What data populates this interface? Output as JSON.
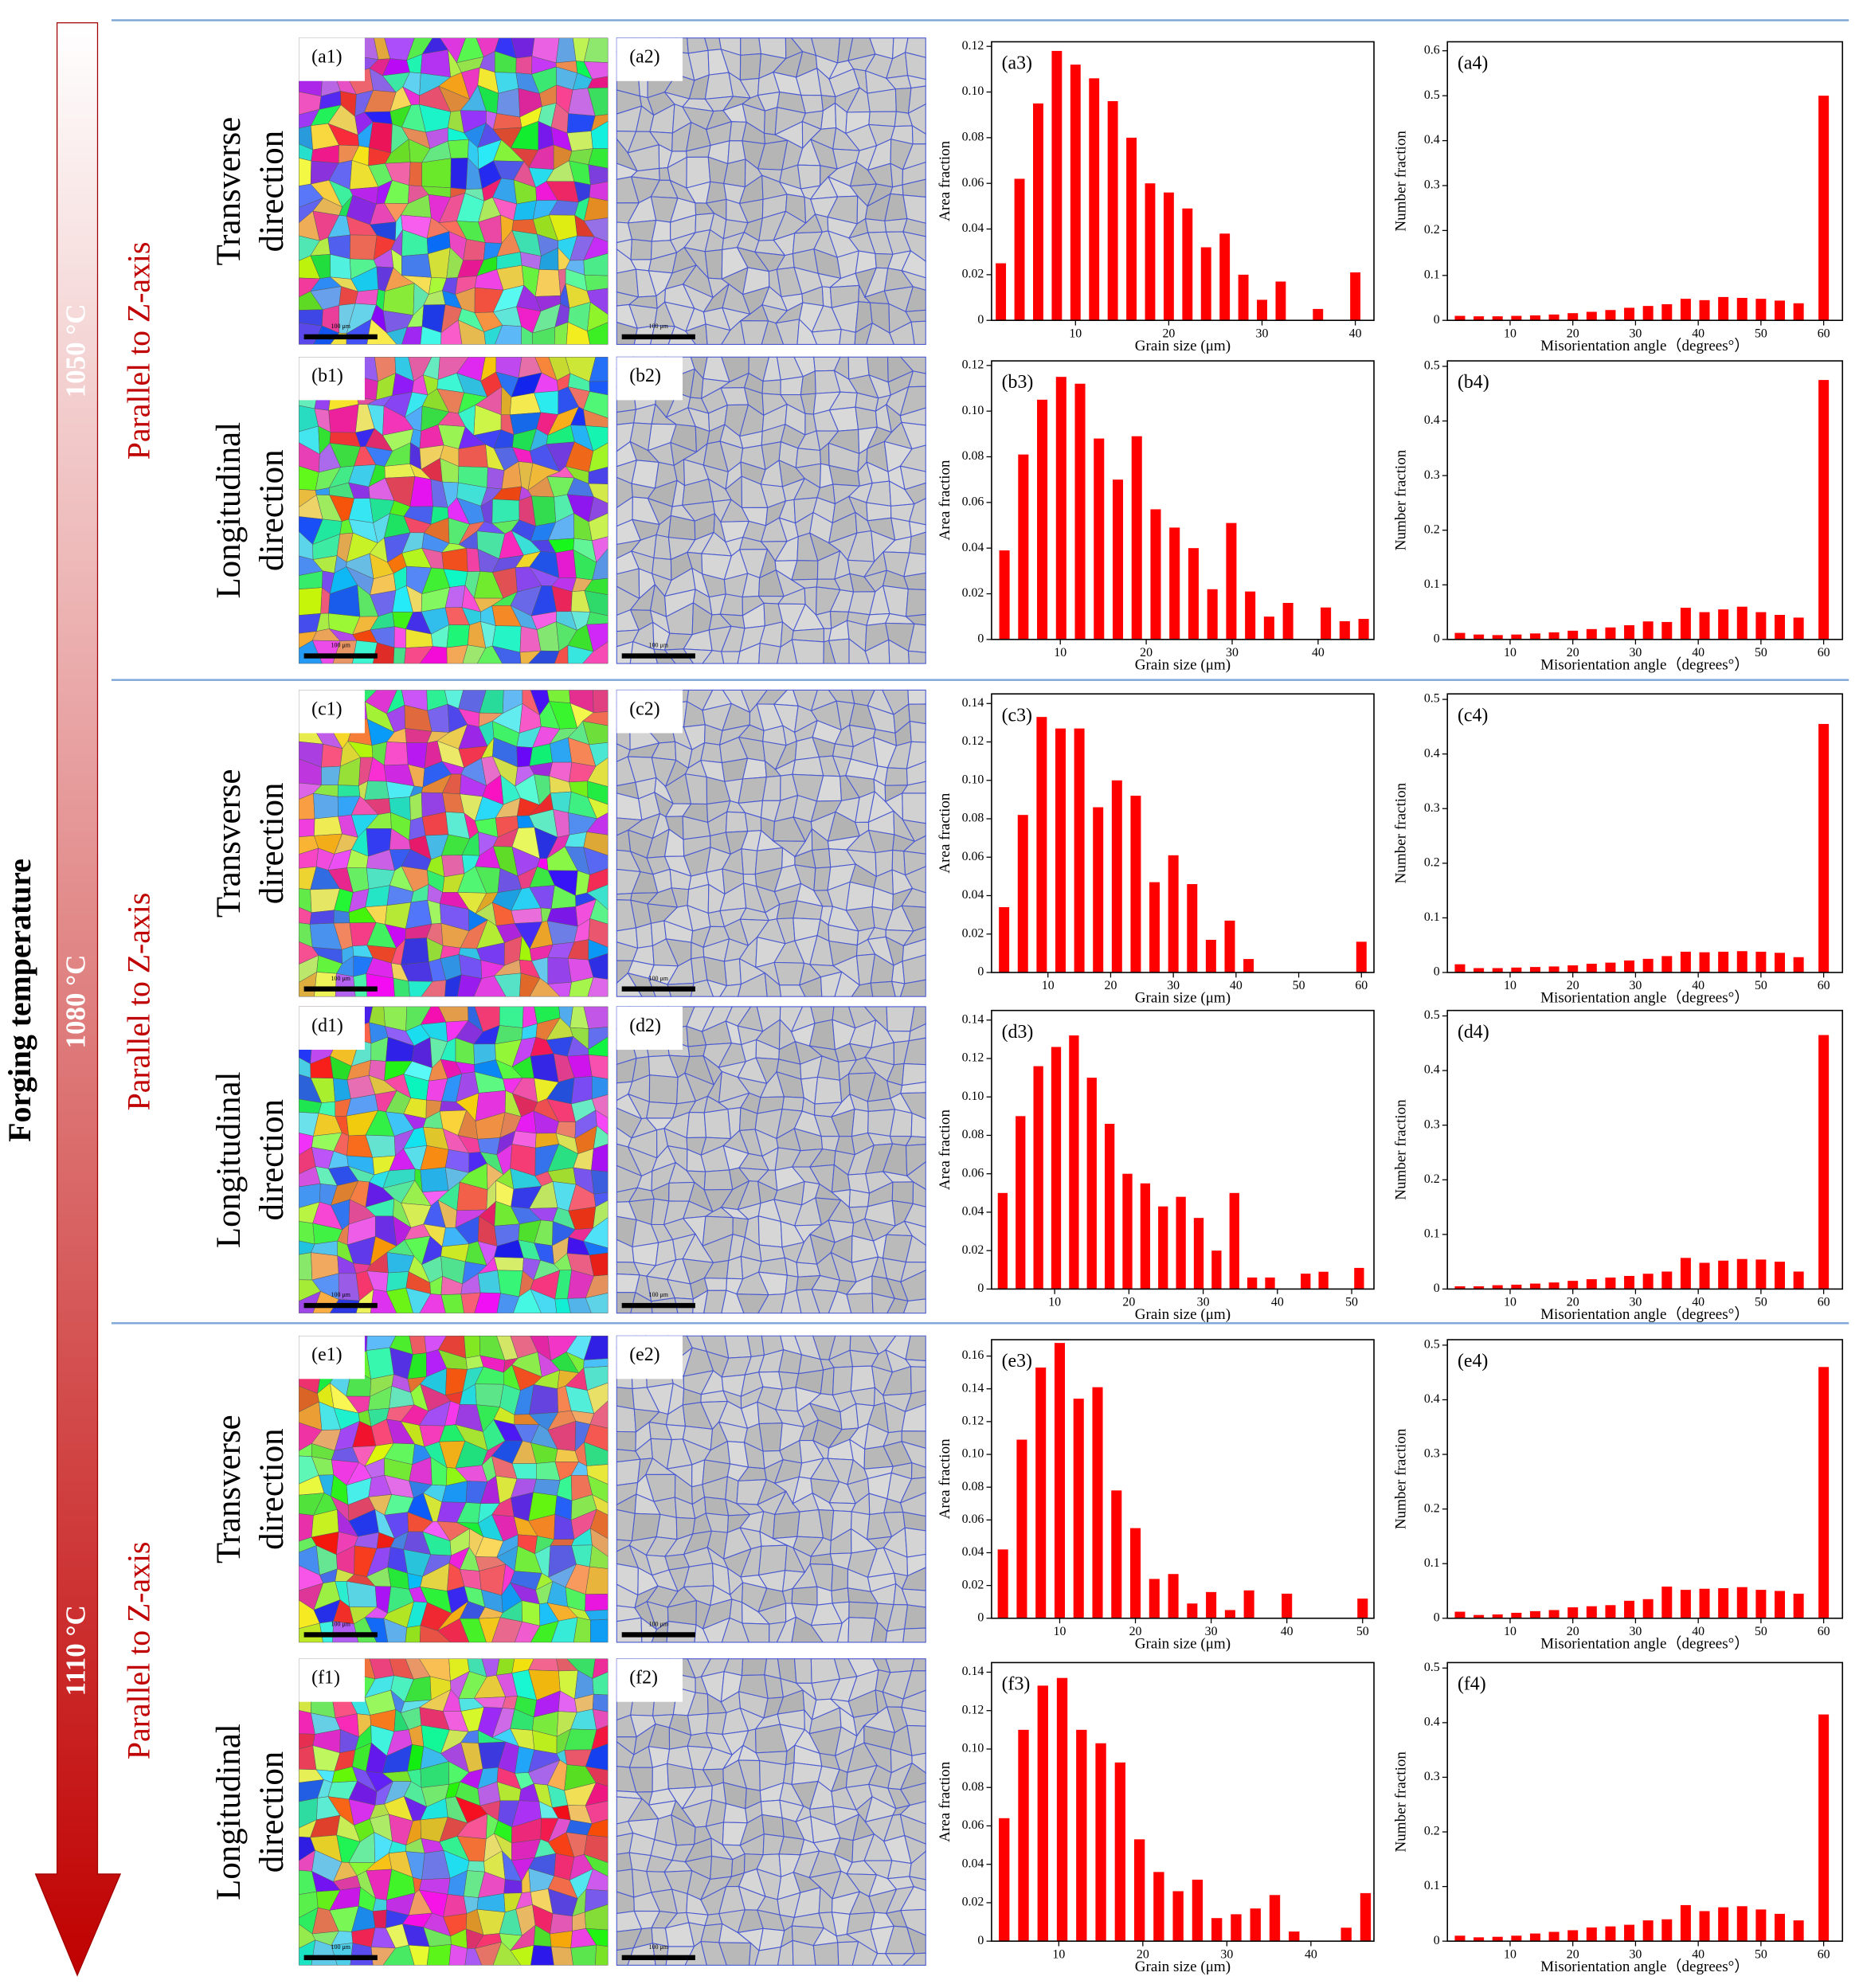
{
  "axis_label": "Forging temperature",
  "groups": [
    {
      "temperature": "1050 °C",
      "orientation": "Parallel to Z-axis",
      "rows": [
        {
          "direction": [
            "Transverse",
            "direction"
          ],
          "images": [
            {
              "label": "(a1)",
              "scale": "100 μm"
            },
            {
              "label": "(a2)",
              "scale": "100 μm"
            }
          ]
        },
        {
          "direction": [
            "Longitudinal",
            "direction"
          ],
          "images": [
            {
              "label": "(b1)",
              "scale": "100 μm"
            },
            {
              "label": "(b2)",
              "scale": "100 μm"
            }
          ]
        }
      ]
    },
    {
      "temperature": "1080 °C",
      "orientation": "Parallel to Z-axis",
      "rows": [
        {
          "direction": [
            "Transverse",
            "direction"
          ],
          "images": [
            {
              "label": "(c1)",
              "scale": "100 μm"
            },
            {
              "label": "(c2)",
              "scale": "100 μm"
            }
          ]
        },
        {
          "direction": [
            "Longitudinal",
            "direction"
          ],
          "images": [
            {
              "label": "(d1)",
              "scale": "100 μm"
            },
            {
              "label": "(d2)",
              "scale": "100 μm"
            }
          ]
        }
      ]
    },
    {
      "temperature": "1110 °C",
      "orientation": "Parallel to Z-axis",
      "rows": [
        {
          "direction": [
            "Transverse",
            "direction"
          ],
          "images": [
            {
              "label": "(e1)",
              "scale": "100 μm"
            },
            {
              "label": "(e2)",
              "scale": "100 μm"
            }
          ]
        },
        {
          "direction": [
            "Longitudinal",
            "direction"
          ],
          "images": [
            {
              "label": "(f1)",
              "scale": "100 μm"
            },
            {
              "label": "(f2)",
              "scale": "100 μm"
            }
          ]
        }
      ]
    }
  ],
  "chart_data": [
    {
      "type": "bar",
      "panel": "(a3)",
      "xlabel": "Grain size (μm)",
      "ylabel": "Area fraction",
      "color": "#ff0000",
      "x": [
        2,
        4,
        6,
        8,
        10,
        12,
        14,
        16,
        18,
        20,
        22,
        24,
        26,
        28,
        30,
        32,
        36,
        40
      ],
      "values": [
        0.025,
        0.062,
        0.095,
        0.118,
        0.112,
        0.106,
        0.096,
        0.08,
        0.06,
        0.056,
        0.049,
        0.032,
        0.038,
        0.02,
        0.009,
        0.017,
        0.005,
        0.021
      ],
      "xlim": [
        1,
        42
      ],
      "xticks": [
        10,
        20,
        30,
        40
      ],
      "ylim": [
        0,
        0.122
      ],
      "yticks": [
        0,
        0.02,
        0.04,
        0.06,
        0.08,
        {
          "value": 0.1,
          "label": "0.10"
        },
        0.12
      ]
    },
    {
      "type": "bar",
      "panel": "(a4)",
      "xlabel": "Misorientation angle（degrees°）",
      "ylabel": "Number fraction",
      "color": "#ff0000",
      "x": [
        2,
        5,
        8,
        11,
        14,
        17,
        20,
        23,
        26,
        29,
        32,
        35,
        38,
        41,
        44,
        47,
        50,
        53,
        56,
        60
      ],
      "values": [
        0.01,
        0.009,
        0.009,
        0.01,
        0.011,
        0.013,
        0.016,
        0.019,
        0.023,
        0.028,
        0.032,
        0.036,
        0.048,
        0.045,
        0.052,
        0.05,
        0.048,
        0.044,
        0.038,
        0.5
      ],
      "xlim": [
        0,
        63
      ],
      "xticks": [
        10,
        20,
        30,
        40,
        50,
        60
      ],
      "ylim": [
        0,
        0.62
      ],
      "yticks": [
        0,
        0.1,
        0.2,
        0.3,
        0.4,
        0.5,
        0.6
      ]
    },
    {
      "type": "bar",
      "panel": "(b3)",
      "xlabel": "Grain size (μm)",
      "ylabel": "Area fraction",
      "color": "#ff0000",
      "x": [
        3.5,
        5.7,
        7.9,
        10.1,
        12.3,
        14.5,
        16.7,
        18.9,
        21.1,
        23.3,
        25.5,
        27.7,
        29.9,
        32.1,
        34.3,
        36.5,
        40.9,
        43.1,
        45.3
      ],
      "values": [
        0.039,
        0.081,
        0.105,
        0.115,
        0.112,
        0.088,
        0.07,
        0.089,
        0.057,
        0.049,
        0.04,
        0.022,
        0.051,
        0.021,
        0.01,
        0.016,
        0.014,
        0.008,
        0.009
      ],
      "xlim": [
        2,
        46.5
      ],
      "xticks": [
        10,
        20,
        30,
        40
      ],
      "ylim": [
        0,
        0.122
      ],
      "yticks": [
        0,
        0.02,
        0.04,
        0.06,
        0.08,
        {
          "value": 0.1,
          "label": "0.10"
        },
        0.12
      ]
    },
    {
      "type": "bar",
      "panel": "(b4)",
      "xlabel": "Misorientation angle（degrees°）",
      "ylabel": "Number fraction",
      "color": "#ff0000",
      "x": [
        2,
        5,
        8,
        11,
        14,
        17,
        20,
        23,
        26,
        29,
        32,
        35,
        38,
        41,
        44,
        47,
        50,
        53,
        56,
        60
      ],
      "values": [
        0.012,
        0.009,
        0.008,
        0.009,
        0.011,
        0.013,
        0.016,
        0.019,
        0.022,
        0.026,
        0.033,
        0.032,
        0.058,
        0.05,
        0.055,
        0.06,
        0.05,
        0.045,
        0.04,
        0.475
      ],
      "xlim": [
        0,
        63
      ],
      "xticks": [
        10,
        20,
        30,
        40,
        50,
        60
      ],
      "ylim": [
        0,
        0.51
      ],
      "yticks": [
        0,
        0.1,
        0.2,
        0.3,
        0.4,
        0.5
      ]
    },
    {
      "type": "bar",
      "panel": "(c3)",
      "xlabel": "Grain size (μm)",
      "ylabel": "Area fraction",
      "color": "#ff0000",
      "x": [
        3,
        6,
        9,
        12,
        15,
        18,
        21,
        24,
        27,
        30,
        33,
        36,
        39,
        42,
        60
      ],
      "values": [
        0.034,
        0.082,
        0.133,
        0.127,
        0.127,
        0.086,
        0.1,
        0.092,
        0.047,
        0.061,
        0.046,
        0.017,
        0.027,
        0.007,
        0.016
      ],
      "xlim": [
        1,
        62
      ],
      "xticks": [
        10,
        20,
        30,
        40,
        50,
        60
      ],
      "ylim": [
        0,
        0.145
      ],
      "yticks": [
        0,
        0.02,
        0.04,
        0.06,
        0.08,
        {
          "value": 0.1,
          "label": "0.10"
        },
        0.12,
        0.14
      ]
    },
    {
      "type": "bar",
      "panel": "(c4)",
      "xlabel": "Misorientation angle（degrees°）",
      "ylabel": "Number fraction",
      "color": "#ff0000",
      "x": [
        2,
        5,
        8,
        11,
        14,
        17,
        20,
        23,
        26,
        29,
        32,
        35,
        38,
        41,
        44,
        47,
        50,
        53,
        56,
        60
      ],
      "values": [
        0.015,
        0.008,
        0.008,
        0.009,
        0.01,
        0.011,
        0.013,
        0.016,
        0.018,
        0.022,
        0.025,
        0.03,
        0.038,
        0.037,
        0.038,
        0.039,
        0.038,
        0.036,
        0.028,
        0.455
      ],
      "xlim": [
        0,
        63
      ],
      "xticks": [
        10,
        20,
        30,
        40,
        50,
        60
      ],
      "ylim": [
        0,
        0.51
      ],
      "yticks": [
        0,
        0.1,
        0.2,
        0.3,
        0.4,
        0.5
      ]
    },
    {
      "type": "bar",
      "panel": "(d3)",
      "xlabel": "Grain size (μm)",
      "ylabel": "Area fraction",
      "color": "#ff0000",
      "x": [
        3,
        5.4,
        7.8,
        10.2,
        12.6,
        15,
        17.4,
        19.8,
        22.2,
        24.6,
        27,
        29.4,
        31.8,
        34.2,
        36.6,
        39,
        43.8,
        46.2,
        51
      ],
      "values": [
        0.05,
        0.09,
        0.116,
        0.126,
        0.132,
        0.11,
        0.086,
        0.06,
        0.055,
        0.043,
        0.048,
        0.037,
        0.02,
        0.05,
        0.006,
        0.006,
        0.008,
        0.009,
        0.011
      ],
      "xlim": [
        1.5,
        53
      ],
      "xticks": [
        10,
        20,
        30,
        40,
        50
      ],
      "ylim": [
        0,
        0.145
      ],
      "yticks": [
        0,
        0.02,
        0.04,
        0.06,
        0.08,
        {
          "value": 0.1,
          "label": "0.10"
        },
        0.12,
        0.14
      ]
    },
    {
      "type": "bar",
      "panel": "(d4)",
      "xlabel": "Misorientation angle（degrees°）",
      "ylabel": "Number fraction",
      "color": "#ff0000",
      "x": [
        2,
        5,
        8,
        11,
        14,
        17,
        20,
        23,
        26,
        29,
        32,
        35,
        38,
        41,
        44,
        47,
        50,
        53,
        56,
        60
      ],
      "values": [
        0.005,
        0.005,
        0.007,
        0.008,
        0.01,
        0.012,
        0.015,
        0.018,
        0.021,
        0.024,
        0.028,
        0.032,
        0.057,
        0.048,
        0.052,
        0.055,
        0.054,
        0.05,
        0.032,
        0.465
      ],
      "xlim": [
        0,
        63
      ],
      "xticks": [
        10,
        20,
        30,
        40,
        50,
        60
      ],
      "ylim": [
        0,
        0.51
      ],
      "yticks": [
        0,
        0.1,
        0.2,
        0.3,
        0.4,
        0.5
      ]
    },
    {
      "type": "bar",
      "panel": "(e3)",
      "xlabel": "Grain size (μm)",
      "ylabel": "Area fraction",
      "color": "#ff0000",
      "x": [
        2.5,
        5,
        7.5,
        10,
        12.5,
        15,
        17.5,
        20,
        22.5,
        25,
        27.5,
        30,
        32.5,
        35,
        40,
        50
      ],
      "values": [
        0.042,
        0.109,
        0.153,
        0.168,
        0.134,
        0.141,
        0.078,
        0.055,
        0.024,
        0.027,
        0.009,
        0.016,
        0.005,
        0.017,
        0.015,
        0.012
      ],
      "xlim": [
        1,
        51.5
      ],
      "xticks": [
        10,
        20,
        30,
        40,
        50
      ],
      "ylim": [
        0,
        0.17
      ],
      "yticks": [
        0,
        0.02,
        0.04,
        0.06,
        0.08,
        {
          "value": 0.1,
          "label": "0.10"
        },
        0.12,
        0.14,
        0.16
      ]
    },
    {
      "type": "bar",
      "panel": "(e4)",
      "xlabel": "Misorientation angle（degrees°）",
      "ylabel": "Number fraction",
      "color": "#ff0000",
      "x": [
        2,
        5,
        8,
        11,
        14,
        17,
        20,
        23,
        26,
        29,
        32,
        35,
        38,
        41,
        44,
        47,
        50,
        53,
        56,
        60
      ],
      "values": [
        0.012,
        0.006,
        0.007,
        0.01,
        0.013,
        0.015,
        0.02,
        0.022,
        0.024,
        0.032,
        0.035,
        0.058,
        0.052,
        0.054,
        0.055,
        0.057,
        0.052,
        0.05,
        0.045,
        0.46
      ],
      "xlim": [
        0,
        63
      ],
      "xticks": [
        10,
        20,
        30,
        40,
        50,
        60
      ],
      "ylim": [
        0,
        0.51
      ],
      "yticks": [
        0,
        0.1,
        0.2,
        0.3,
        0.4,
        0.5
      ]
    },
    {
      "type": "bar",
      "panel": "(f3)",
      "xlabel": "Grain size (μm)",
      "ylabel": "Area fraction",
      "color": "#ff0000",
      "x": [
        3.5,
        5.8,
        8.1,
        10.4,
        12.7,
        15,
        17.3,
        19.6,
        21.9,
        24.2,
        26.5,
        28.8,
        31.1,
        33.4,
        35.7,
        38,
        44.2,
        46.5
      ],
      "values": [
        0.064,
        0.11,
        0.133,
        0.137,
        0.11,
        0.103,
        0.093,
        0.053,
        0.036,
        0.026,
        0.032,
        0.012,
        0.014,
        0.017,
        0.024,
        0.005,
        0.007,
        0.025
      ],
      "xlim": [
        2,
        47.5
      ],
      "xticks": [
        10,
        20,
        30,
        40
      ],
      "ylim": [
        0,
        0.145
      ],
      "yticks": [
        0,
        0.02,
        0.04,
        0.06,
        0.08,
        {
          "value": 0.1,
          "label": "0.10"
        },
        0.12,
        0.14
      ]
    },
    {
      "type": "bar",
      "panel": "(f4)",
      "xlabel": "Misorientation angle（degrees°）",
      "ylabel": "Number fraction",
      "color": "#ff0000",
      "x": [
        2,
        5,
        8,
        11,
        14,
        17,
        20,
        23,
        26,
        29,
        32,
        35,
        38,
        41,
        44,
        47,
        50,
        53,
        56,
        60
      ],
      "values": [
        0.01,
        0.007,
        0.008,
        0.01,
        0.014,
        0.017,
        0.02,
        0.025,
        0.027,
        0.03,
        0.038,
        0.04,
        0.066,
        0.055,
        0.062,
        0.064,
        0.058,
        0.05,
        0.038,
        0.415
      ],
      "xlim": [
        0,
        63
      ],
      "xticks": [
        10,
        20,
        30,
        40,
        50,
        60
      ],
      "ylim": [
        0,
        0.51
      ],
      "yticks": [
        0,
        0.1,
        0.2,
        0.3,
        0.4,
        0.5
      ]
    }
  ]
}
